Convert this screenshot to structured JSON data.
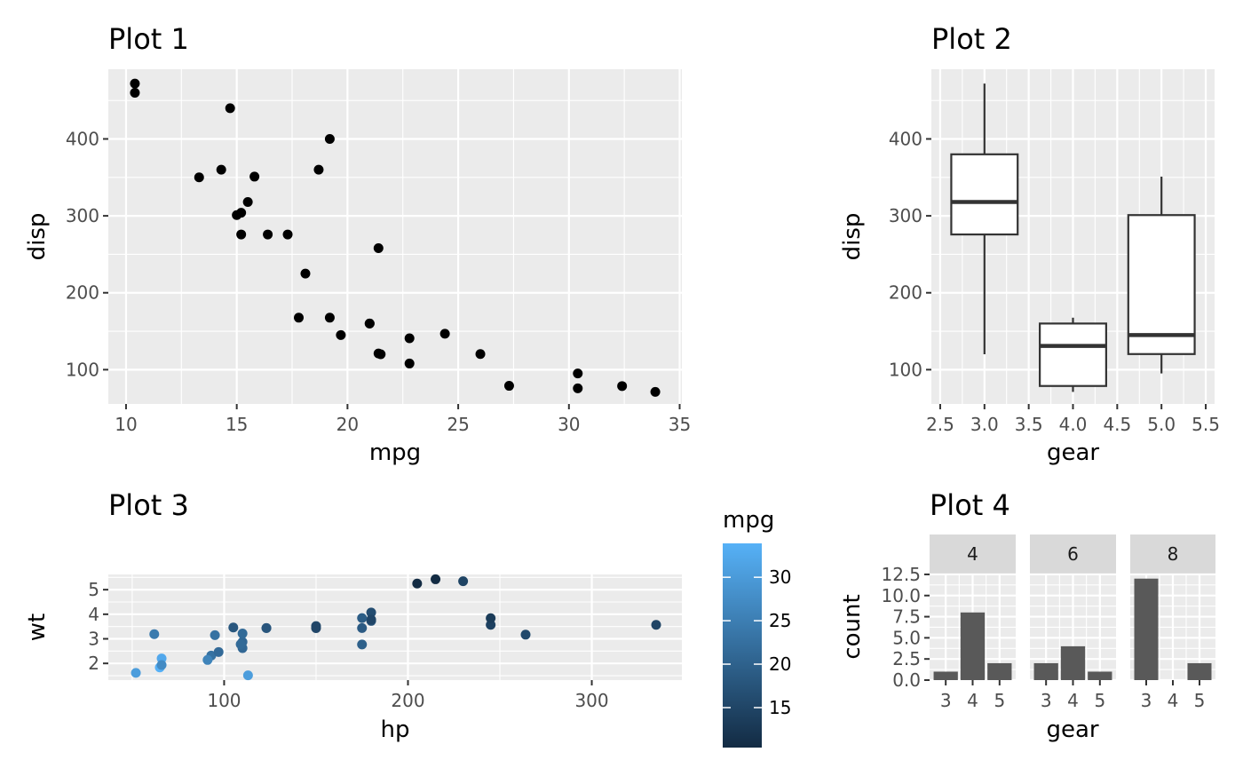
{
  "chart_data": [
    {
      "type": "scatter",
      "title": "Plot 1",
      "xlabel": "mpg",
      "ylabel": "disp",
      "xlim": [
        9.2,
        35.1
      ],
      "ylim": [
        55.4,
        490.6
      ],
      "xticks": [
        10,
        15,
        20,
        25,
        30,
        35
      ],
      "yticks": [
        100,
        200,
        300,
        400
      ],
      "points": [
        [
          21.0,
          160
        ],
        [
          21.0,
          160
        ],
        [
          22.8,
          108
        ],
        [
          21.4,
          258
        ],
        [
          18.7,
          360
        ],
        [
          18.1,
          225
        ],
        [
          14.3,
          360
        ],
        [
          24.4,
          146.7
        ],
        [
          22.8,
          140.8
        ],
        [
          19.2,
          167.6
        ],
        [
          17.8,
          167.6
        ],
        [
          16.4,
          275.8
        ],
        [
          17.3,
          275.8
        ],
        [
          15.2,
          275.8
        ],
        [
          10.4,
          472
        ],
        [
          10.4,
          460
        ],
        [
          14.7,
          440
        ],
        [
          32.4,
          78.7
        ],
        [
          30.4,
          75.7
        ],
        [
          33.9,
          71.1
        ],
        [
          21.5,
          120.1
        ],
        [
          15.5,
          318
        ],
        [
          15.2,
          304
        ],
        [
          13.3,
          350
        ],
        [
          19.2,
          400
        ],
        [
          27.3,
          79
        ],
        [
          26.0,
          120.3
        ],
        [
          30.4,
          95.1
        ],
        [
          15.8,
          351
        ],
        [
          19.7,
          145
        ],
        [
          15.0,
          301
        ],
        [
          21.4,
          121
        ]
      ]
    },
    {
      "type": "box",
      "title": "Plot 2",
      "xlabel": "gear",
      "ylabel": "disp",
      "xlim": [
        2.4,
        5.6
      ],
      "ylim": [
        55.4,
        490.6
      ],
      "xticks": [
        "2.5",
        "3.0",
        "3.5",
        "4.0",
        "4.5",
        "5.0",
        "5.5"
      ],
      "yticks": [
        100,
        200,
        300,
        400
      ],
      "boxes": [
        {
          "x": 3,
          "lower_whisker": 120.1,
          "q1": 275.8,
          "median": 318,
          "q3": 380,
          "upper_whisker": 472
        },
        {
          "x": 4,
          "lower_whisker": 71.1,
          "q1": 78.8,
          "median": 130.9,
          "q3": 160,
          "upper_whisker": 167.6
        },
        {
          "x": 5,
          "lower_whisker": 95.1,
          "q1": 120.3,
          "median": 145,
          "q3": 301,
          "upper_whisker": 351
        }
      ]
    },
    {
      "type": "scatter",
      "title": "Plot 3",
      "xlabel": "hp",
      "ylabel": "wt",
      "color_label": "mpg",
      "xlim": [
        37,
        349
      ],
      "ylim": [
        1.32,
        5.62
      ],
      "xticks": [
        100,
        200,
        300
      ],
      "yticks": [
        2,
        3,
        4,
        5
      ],
      "color_ticks": [
        15,
        20,
        25,
        30
      ],
      "color_range": [
        10.4,
        33.9
      ],
      "color_low": "#132b43",
      "color_high": "#56b1f7",
      "points": [
        [
          110,
          2.62,
          21.0
        ],
        [
          110,
          2.875,
          21.0
        ],
        [
          93,
          2.32,
          22.8
        ],
        [
          110,
          3.215,
          21.4
        ],
        [
          175,
          3.44,
          18.7
        ],
        [
          105,
          3.46,
          18.1
        ],
        [
          245,
          3.57,
          14.3
        ],
        [
          62,
          3.19,
          24.4
        ],
        [
          95,
          3.15,
          22.8
        ],
        [
          123,
          3.44,
          19.2
        ],
        [
          123,
          3.44,
          17.8
        ],
        [
          180,
          4.07,
          16.4
        ],
        [
          180,
          3.73,
          17.3
        ],
        [
          180,
          3.78,
          15.2
        ],
        [
          205,
          5.25,
          10.4
        ],
        [
          215,
          5.424,
          10.4
        ],
        [
          230,
          5.345,
          14.7
        ],
        [
          66,
          2.2,
          32.4
        ],
        [
          52,
          1.615,
          30.4
        ],
        [
          65,
          1.835,
          33.9
        ],
        [
          97,
          2.465,
          21.5
        ],
        [
          150,
          3.52,
          15.5
        ],
        [
          150,
          3.435,
          15.2
        ],
        [
          245,
          3.84,
          13.3
        ],
        [
          175,
          3.845,
          19.2
        ],
        [
          66,
          1.935,
          27.3
        ],
        [
          91,
          2.14,
          26.0
        ],
        [
          113,
          1.513,
          30.4
        ],
        [
          264,
          3.17,
          15.8
        ],
        [
          175,
          2.77,
          19.7
        ],
        [
          335,
          3.57,
          15.0
        ],
        [
          109,
          2.78,
          21.4
        ]
      ]
    },
    {
      "type": "bar",
      "title": "Plot 4",
      "xlabel": "gear",
      "ylabel": "count",
      "ylim": [
        0,
        12.6
      ],
      "yticks": [
        "0.0",
        "2.5",
        "5.0",
        "7.5",
        "10.0",
        "12.5"
      ],
      "categories": [
        "3",
        "4",
        "5"
      ],
      "facets": [
        {
          "label": "4",
          "values": [
            1,
            8,
            2
          ]
        },
        {
          "label": "6",
          "values": [
            2,
            4,
            1
          ]
        },
        {
          "label": "8",
          "values": [
            12,
            0,
            2
          ]
        }
      ]
    }
  ]
}
